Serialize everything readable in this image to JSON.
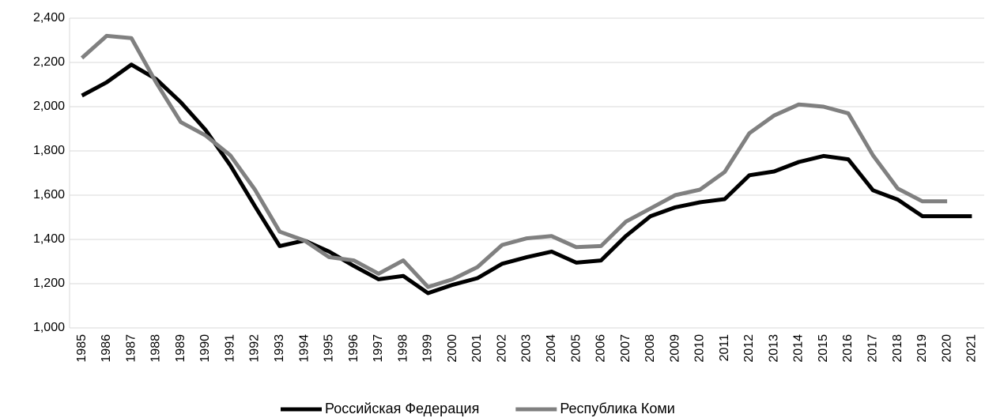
{
  "chart_data": {
    "type": "line",
    "categories": [
      "1985",
      "1986",
      "1987",
      "1988",
      "1989",
      "1990",
      "1991",
      "1992",
      "1993",
      "1994",
      "1995",
      "1996",
      "1997",
      "1998",
      "1999",
      "2000",
      "2001",
      "2002",
      "2003",
      "2004",
      "2005",
      "2006",
      "2007",
      "2008",
      "2009",
      "2010",
      "2011",
      "2012",
      "2013",
      "2014",
      "2015",
      "2016",
      "2017",
      "2018",
      "2019",
      "2020",
      "2021"
    ],
    "series": [
      {
        "name": "Российская Федерация",
        "color": "#000000",
        "values": [
          2050,
          2110,
          2190,
          2125,
          2020,
          1895,
          1735,
          1550,
          1370,
          1395,
          1345,
          1280,
          1220,
          1235,
          1157,
          1195,
          1225,
          1290,
          1320,
          1345,
          1295,
          1305,
          1415,
          1505,
          1545,
          1568,
          1582,
          1690,
          1707,
          1750,
          1777,
          1762,
          1622,
          1580,
          1505,
          1505,
          1505
        ]
      },
      {
        "name": "Республика Коми",
        "color": "#808080",
        "values": [
          2220,
          2320,
          2310,
          2110,
          1930,
          1870,
          1780,
          1625,
          1435,
          1395,
          1320,
          1305,
          1245,
          1305,
          1185,
          1220,
          1275,
          1375,
          1405,
          1415,
          1365,
          1370,
          1480,
          1540,
          1600,
          1625,
          1705,
          1880,
          1960,
          2010,
          2000,
          1970,
          1780,
          1630,
          1572,
          1572,
          null
        ]
      }
    ],
    "ylim": [
      1000,
      2400
    ],
    "yticks": [
      {
        "value": 1000,
        "label": "1,000"
      },
      {
        "value": 1200,
        "label": "1,200"
      },
      {
        "value": 1400,
        "label": "1,400"
      },
      {
        "value": 1600,
        "label": "1,600"
      },
      {
        "value": 1800,
        "label": "1,800"
      },
      {
        "value": 2000,
        "label": "2,000"
      },
      {
        "value": 2200,
        "label": "2,200"
      },
      {
        "value": 2400,
        "label": "2,400"
      }
    ],
    "grid": true,
    "legend": "bottom"
  }
}
